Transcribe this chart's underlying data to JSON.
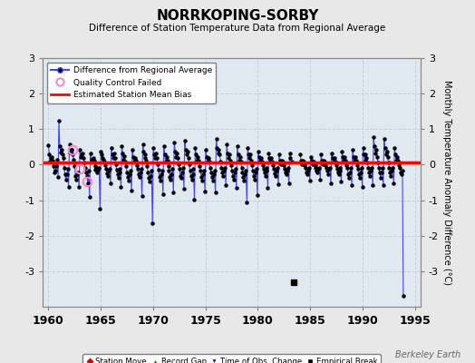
{
  "title": "NORRKOPING-SORBY",
  "subtitle": "Difference of Station Temperature Data from Regional Average",
  "ylabel_right": "Monthly Temperature Anomaly Difference (°C)",
  "xlim": [
    1959.5,
    1995.5
  ],
  "ylim": [
    -4.0,
    3.0
  ],
  "yticks_left": [
    -3,
    -2,
    -1,
    0,
    1,
    2,
    3
  ],
  "yticks_right": [
    -3,
    -2,
    -1,
    0,
    1,
    2,
    3
  ],
  "xticks": [
    1960,
    1965,
    1970,
    1975,
    1980,
    1985,
    1990,
    1995
  ],
  "bg_color": "#e8e8e8",
  "plot_bg_color": "#e0e8f0",
  "grid_color": "#c8d0d8",
  "line_color": "#4444ff",
  "bias_color": "#ff0000",
  "bias_value": 0.05,
  "empirical_break_year": 1983.4,
  "empirical_break_value": -3.3,
  "watermark": "Berkeley Earth",
  "qc_fail_points": [
    [
      1962.3,
      0.42
    ],
    [
      1963.0,
      -0.12
    ],
    [
      1963.75,
      -0.48
    ]
  ],
  "monthly_data": [
    [
      1960.04,
      0.55
    ],
    [
      1960.12,
      0.28
    ],
    [
      1960.21,
      0.08
    ],
    [
      1960.29,
      0.18
    ],
    [
      1960.37,
      0.22
    ],
    [
      1960.46,
      0.12
    ],
    [
      1960.54,
      -0.05
    ],
    [
      1960.62,
      -0.22
    ],
    [
      1960.71,
      -0.18
    ],
    [
      1960.79,
      -0.05
    ],
    [
      1960.87,
      0.15
    ],
    [
      1960.96,
      -0.35
    ],
    [
      1961.04,
      1.25
    ],
    [
      1961.12,
      0.52
    ],
    [
      1961.21,
      0.35
    ],
    [
      1961.29,
      0.42
    ],
    [
      1961.37,
      0.28
    ],
    [
      1961.46,
      0.18
    ],
    [
      1961.54,
      -0.08
    ],
    [
      1961.62,
      -0.28
    ],
    [
      1961.71,
      -0.42
    ],
    [
      1961.79,
      -0.28
    ],
    [
      1961.87,
      -0.12
    ],
    [
      1961.96,
      -0.62
    ],
    [
      1962.04,
      0.58
    ],
    [
      1962.12,
      0.35
    ],
    [
      1962.21,
      0.42
    ],
    [
      1962.29,
      0.42
    ],
    [
      1962.37,
      0.28
    ],
    [
      1962.46,
      0.15
    ],
    [
      1962.54,
      -0.05
    ],
    [
      1962.62,
      -0.32
    ],
    [
      1962.71,
      -0.42
    ],
    [
      1962.79,
      -0.28
    ],
    [
      1962.87,
      -0.22
    ],
    [
      1962.96,
      -0.62
    ],
    [
      1963.04,
      0.42
    ],
    [
      1963.12,
      0.22
    ],
    [
      1963.21,
      0.28
    ],
    [
      1963.29,
      0.32
    ],
    [
      1963.37,
      0.18
    ],
    [
      1963.46,
      0.05
    ],
    [
      1963.54,
      -0.08
    ],
    [
      1963.62,
      -0.22
    ],
    [
      1963.71,
      -0.32
    ],
    [
      1963.79,
      -0.52
    ],
    [
      1963.87,
      -0.18
    ],
    [
      1963.96,
      -0.92
    ],
    [
      1964.04,
      0.32
    ],
    [
      1964.12,
      0.15
    ],
    [
      1964.21,
      0.08
    ],
    [
      1964.29,
      0.18
    ],
    [
      1964.37,
      0.12
    ],
    [
      1964.46,
      -0.05
    ],
    [
      1964.54,
      -0.15
    ],
    [
      1964.62,
      -0.08
    ],
    [
      1964.71,
      -0.22
    ],
    [
      1964.79,
      -0.15
    ],
    [
      1964.87,
      -0.08
    ],
    [
      1964.96,
      -1.25
    ],
    [
      1965.04,
      0.38
    ],
    [
      1965.12,
      0.28
    ],
    [
      1965.21,
      0.18
    ],
    [
      1965.29,
      0.15
    ],
    [
      1965.37,
      0.08
    ],
    [
      1965.46,
      -0.02
    ],
    [
      1965.54,
      -0.12
    ],
    [
      1965.62,
      -0.25
    ],
    [
      1965.71,
      -0.32
    ],
    [
      1965.79,
      -0.18
    ],
    [
      1965.87,
      -0.12
    ],
    [
      1965.96,
      -0.52
    ],
    [
      1966.04,
      0.48
    ],
    [
      1966.12,
      0.28
    ],
    [
      1966.21,
      0.18
    ],
    [
      1966.29,
      0.32
    ],
    [
      1966.37,
      0.18
    ],
    [
      1966.46,
      0.02
    ],
    [
      1966.54,
      -0.15
    ],
    [
      1966.62,
      -0.28
    ],
    [
      1966.71,
      -0.38
    ],
    [
      1966.79,
      -0.22
    ],
    [
      1966.87,
      -0.12
    ],
    [
      1966.96,
      -0.62
    ],
    [
      1967.04,
      0.52
    ],
    [
      1967.12,
      0.32
    ],
    [
      1967.21,
      0.15
    ],
    [
      1967.29,
      0.25
    ],
    [
      1967.37,
      0.08
    ],
    [
      1967.46,
      -0.05
    ],
    [
      1967.54,
      -0.22
    ],
    [
      1967.62,
      -0.35
    ],
    [
      1967.71,
      -0.45
    ],
    [
      1967.79,
      -0.28
    ],
    [
      1967.87,
      -0.18
    ],
    [
      1967.96,
      -0.72
    ],
    [
      1968.04,
      0.42
    ],
    [
      1968.12,
      0.22
    ],
    [
      1968.21,
      0.08
    ],
    [
      1968.29,
      0.18
    ],
    [
      1968.37,
      0.12
    ],
    [
      1968.46,
      -0.02
    ],
    [
      1968.54,
      -0.12
    ],
    [
      1968.62,
      -0.28
    ],
    [
      1968.71,
      -0.35
    ],
    [
      1968.79,
      -0.22
    ],
    [
      1968.87,
      -0.12
    ],
    [
      1968.96,
      -0.88
    ],
    [
      1969.04,
      0.58
    ],
    [
      1969.12,
      0.38
    ],
    [
      1969.21,
      0.18
    ],
    [
      1969.29,
      0.28
    ],
    [
      1969.37,
      0.12
    ],
    [
      1969.46,
      -0.05
    ],
    [
      1969.54,
      -0.22
    ],
    [
      1969.62,
      -0.38
    ],
    [
      1969.71,
      -0.48
    ],
    [
      1969.79,
      -0.32
    ],
    [
      1969.87,
      -0.18
    ],
    [
      1969.96,
      -1.65
    ],
    [
      1970.04,
      0.48
    ],
    [
      1970.12,
      0.28
    ],
    [
      1970.21,
      0.18
    ],
    [
      1970.29,
      0.32
    ],
    [
      1970.37,
      0.18
    ],
    [
      1970.46,
      0.02
    ],
    [
      1970.54,
      -0.15
    ],
    [
      1970.62,
      -0.35
    ],
    [
      1970.71,
      -0.45
    ],
    [
      1970.79,
      -0.28
    ],
    [
      1970.87,
      -0.18
    ],
    [
      1970.96,
      -0.82
    ],
    [
      1971.04,
      0.52
    ],
    [
      1971.12,
      0.28
    ],
    [
      1971.21,
      0.08
    ],
    [
      1971.29,
      0.22
    ],
    [
      1971.37,
      0.12
    ],
    [
      1971.46,
      -0.05
    ],
    [
      1971.54,
      -0.18
    ],
    [
      1971.62,
      -0.35
    ],
    [
      1971.71,
      -0.42
    ],
    [
      1971.79,
      -0.28
    ],
    [
      1971.87,
      -0.12
    ],
    [
      1971.96,
      -0.78
    ],
    [
      1972.04,
      0.62
    ],
    [
      1972.12,
      0.38
    ],
    [
      1972.21,
      0.22
    ],
    [
      1972.29,
      0.32
    ],
    [
      1972.37,
      0.18
    ],
    [
      1972.46,
      0.02
    ],
    [
      1972.54,
      -0.12
    ],
    [
      1972.62,
      -0.32
    ],
    [
      1972.71,
      -0.38
    ],
    [
      1972.79,
      -0.22
    ],
    [
      1972.87,
      -0.08
    ],
    [
      1972.96,
      -0.68
    ],
    [
      1973.04,
      0.68
    ],
    [
      1973.12,
      0.42
    ],
    [
      1973.21,
      0.28
    ],
    [
      1973.29,
      0.38
    ],
    [
      1973.37,
      0.18
    ],
    [
      1973.46,
      0.02
    ],
    [
      1973.54,
      -0.18
    ],
    [
      1973.62,
      -0.32
    ],
    [
      1973.71,
      -0.42
    ],
    [
      1973.79,
      -0.28
    ],
    [
      1973.87,
      -0.12
    ],
    [
      1973.96,
      -0.98
    ],
    [
      1974.04,
      0.48
    ],
    [
      1974.12,
      0.28
    ],
    [
      1974.21,
      0.12
    ],
    [
      1974.29,
      0.22
    ],
    [
      1974.37,
      0.12
    ],
    [
      1974.46,
      -0.05
    ],
    [
      1974.54,
      -0.18
    ],
    [
      1974.62,
      -0.35
    ],
    [
      1974.71,
      -0.45
    ],
    [
      1974.79,
      -0.28
    ],
    [
      1974.87,
      -0.18
    ],
    [
      1974.96,
      -0.75
    ],
    [
      1975.04,
      0.42
    ],
    [
      1975.12,
      0.22
    ],
    [
      1975.21,
      0.08
    ],
    [
      1975.29,
      0.18
    ],
    [
      1975.37,
      0.08
    ],
    [
      1975.46,
      -0.08
    ],
    [
      1975.54,
      -0.22
    ],
    [
      1975.62,
      -0.35
    ],
    [
      1975.71,
      -0.45
    ],
    [
      1975.79,
      -0.28
    ],
    [
      1975.87,
      -0.18
    ],
    [
      1975.96,
      -0.78
    ],
    [
      1976.04,
      0.72
    ],
    [
      1976.12,
      0.48
    ],
    [
      1976.21,
      0.32
    ],
    [
      1976.29,
      0.42
    ],
    [
      1976.37,
      0.28
    ],
    [
      1976.46,
      0.08
    ],
    [
      1976.54,
      -0.08
    ],
    [
      1976.62,
      -0.22
    ],
    [
      1976.71,
      -0.32
    ],
    [
      1976.79,
      -0.18
    ],
    [
      1976.87,
      -0.08
    ],
    [
      1976.96,
      -0.58
    ],
    [
      1977.04,
      0.58
    ],
    [
      1977.12,
      0.32
    ],
    [
      1977.21,
      0.18
    ],
    [
      1977.29,
      0.28
    ],
    [
      1977.37,
      0.12
    ],
    [
      1977.46,
      -0.02
    ],
    [
      1977.54,
      -0.18
    ],
    [
      1977.62,
      -0.32
    ],
    [
      1977.71,
      -0.42
    ],
    [
      1977.79,
      -0.22
    ],
    [
      1977.87,
      -0.12
    ],
    [
      1977.96,
      -0.65
    ],
    [
      1978.04,
      0.52
    ],
    [
      1978.12,
      0.28
    ],
    [
      1978.21,
      0.12
    ],
    [
      1978.29,
      0.22
    ],
    [
      1978.37,
      0.08
    ],
    [
      1978.46,
      -0.08
    ],
    [
      1978.54,
      -0.22
    ],
    [
      1978.62,
      -0.35
    ],
    [
      1978.71,
      -0.45
    ],
    [
      1978.79,
      -0.28
    ],
    [
      1978.87,
      -0.18
    ],
    [
      1978.96,
      -1.05
    ],
    [
      1979.04,
      0.48
    ],
    [
      1979.12,
      0.28
    ],
    [
      1979.21,
      0.18
    ],
    [
      1979.29,
      0.28
    ],
    [
      1979.37,
      0.12
    ],
    [
      1979.46,
      -0.02
    ],
    [
      1979.54,
      -0.18
    ],
    [
      1979.62,
      -0.32
    ],
    [
      1979.71,
      -0.42
    ],
    [
      1979.79,
      -0.22
    ],
    [
      1979.87,
      -0.12
    ],
    [
      1979.96,
      -0.85
    ],
    [
      1980.04,
      0.38
    ],
    [
      1980.12,
      0.22
    ],
    [
      1980.21,
      0.12
    ],
    [
      1980.29,
      0.18
    ],
    [
      1980.37,
      0.08
    ],
    [
      1980.46,
      -0.02
    ],
    [
      1980.54,
      -0.12
    ],
    [
      1980.62,
      -0.22
    ],
    [
      1980.71,
      -0.32
    ],
    [
      1980.79,
      -0.18
    ],
    [
      1980.87,
      -0.08
    ],
    [
      1980.96,
      -0.65
    ],
    [
      1981.04,
      0.32
    ],
    [
      1981.12,
      0.18
    ],
    [
      1981.21,
      0.08
    ],
    [
      1981.29,
      0.18
    ],
    [
      1981.37,
      0.08
    ],
    [
      1981.46,
      -0.02
    ],
    [
      1981.54,
      -0.12
    ],
    [
      1981.62,
      -0.25
    ],
    [
      1981.71,
      -0.32
    ],
    [
      1981.79,
      -0.18
    ],
    [
      1981.87,
      -0.08
    ],
    [
      1981.96,
      -0.55
    ],
    [
      1982.04,
      0.28
    ],
    [
      1982.12,
      0.12
    ],
    [
      1982.21,
      0.02
    ],
    [
      1982.29,
      0.12
    ],
    [
      1982.37,
      0.08
    ],
    [
      1982.46,
      -0.02
    ],
    [
      1982.54,
      -0.12
    ],
    [
      1982.62,
      -0.22
    ],
    [
      1982.71,
      -0.28
    ],
    [
      1982.79,
      -0.18
    ],
    [
      1982.87,
      -0.08
    ],
    [
      1982.96,
      -0.52
    ],
    [
      1983.04,
      0.32
    ],
    [
      1983.12,
      0.18
    ],
    [
      1983.21,
      0.08
    ],
    [
      1984.04,
      0.28
    ],
    [
      1984.12,
      0.12
    ],
    [
      1984.21,
      0.02
    ],
    [
      1984.29,
      0.12
    ],
    [
      1984.37,
      0.08
    ],
    [
      1984.46,
      -0.02
    ],
    [
      1984.54,
      -0.08
    ],
    [
      1984.62,
      -0.22
    ],
    [
      1984.71,
      -0.28
    ],
    [
      1984.79,
      -0.18
    ],
    [
      1984.87,
      -0.08
    ],
    [
      1984.96,
      -0.45
    ],
    [
      1985.04,
      0.22
    ],
    [
      1985.12,
      0.12
    ],
    [
      1985.21,
      0.02
    ],
    [
      1985.29,
      0.08
    ],
    [
      1985.37,
      0.02
    ],
    [
      1985.46,
      -0.02
    ],
    [
      1985.54,
      -0.08
    ],
    [
      1985.62,
      -0.18
    ],
    [
      1985.71,
      -0.22
    ],
    [
      1985.79,
      -0.12
    ],
    [
      1985.87,
      -0.08
    ],
    [
      1985.96,
      -0.42
    ],
    [
      1986.04,
      0.28
    ],
    [
      1986.12,
      0.12
    ],
    [
      1986.21,
      0.02
    ],
    [
      1986.29,
      0.12
    ],
    [
      1986.37,
      0.08
    ],
    [
      1986.46,
      -0.02
    ],
    [
      1986.54,
      -0.08
    ],
    [
      1986.62,
      -0.18
    ],
    [
      1986.71,
      -0.28
    ],
    [
      1986.79,
      -0.12
    ],
    [
      1986.87,
      -0.08
    ],
    [
      1986.96,
      -0.52
    ],
    [
      1987.04,
      0.32
    ],
    [
      1987.12,
      0.18
    ],
    [
      1987.21,
      0.08
    ],
    [
      1987.29,
      0.18
    ],
    [
      1987.37,
      0.08
    ],
    [
      1987.46,
      -0.02
    ],
    [
      1987.54,
      -0.12
    ],
    [
      1987.62,
      -0.22
    ],
    [
      1987.71,
      -0.28
    ],
    [
      1987.79,
      -0.18
    ],
    [
      1987.87,
      -0.08
    ],
    [
      1987.96,
      -0.48
    ],
    [
      1988.04,
      0.38
    ],
    [
      1988.12,
      0.22
    ],
    [
      1988.21,
      0.12
    ],
    [
      1988.29,
      0.22
    ],
    [
      1988.37,
      0.12
    ],
    [
      1988.46,
      -0.02
    ],
    [
      1988.54,
      -0.08
    ],
    [
      1988.62,
      -0.28
    ],
    [
      1988.71,
      -0.38
    ],
    [
      1988.79,
      -0.22
    ],
    [
      1988.87,
      -0.08
    ],
    [
      1988.96,
      -0.58
    ],
    [
      1989.04,
      0.42
    ],
    [
      1989.12,
      0.22
    ],
    [
      1989.21,
      0.12
    ],
    [
      1989.29,
      0.22
    ],
    [
      1989.37,
      0.12
    ],
    [
      1989.46,
      -0.02
    ],
    [
      1989.54,
      -0.12
    ],
    [
      1989.62,
      -0.28
    ],
    [
      1989.71,
      -0.38
    ],
    [
      1989.79,
      -0.22
    ],
    [
      1989.87,
      -0.08
    ],
    [
      1989.96,
      -0.62
    ],
    [
      1990.04,
      0.48
    ],
    [
      1990.12,
      0.28
    ],
    [
      1990.21,
      0.12
    ],
    [
      1990.29,
      0.28
    ],
    [
      1990.37,
      0.18
    ],
    [
      1990.46,
      0.05
    ],
    [
      1990.54,
      -0.08
    ],
    [
      1990.62,
      -0.22
    ],
    [
      1990.71,
      -0.32
    ],
    [
      1990.79,
      -0.18
    ],
    [
      1990.87,
      -0.08
    ],
    [
      1990.96,
      -0.58
    ],
    [
      1991.04,
      0.78
    ],
    [
      1991.12,
      0.52
    ],
    [
      1991.21,
      0.32
    ],
    [
      1991.29,
      0.42
    ],
    [
      1991.37,
      0.22
    ],
    [
      1991.46,
      0.05
    ],
    [
      1991.54,
      -0.08
    ],
    [
      1991.62,
      -0.22
    ],
    [
      1991.71,
      -0.38
    ],
    [
      1991.79,
      -0.22
    ],
    [
      1991.87,
      -0.08
    ],
    [
      1991.96,
      -0.58
    ],
    [
      1992.04,
      0.72
    ],
    [
      1992.12,
      0.48
    ],
    [
      1992.21,
      0.28
    ],
    [
      1992.29,
      0.38
    ],
    [
      1992.37,
      0.22
    ],
    [
      1992.46,
      0.05
    ],
    [
      1992.54,
      -0.08
    ],
    [
      1992.62,
      -0.22
    ],
    [
      1992.71,
      -0.32
    ],
    [
      1992.79,
      -0.18
    ],
    [
      1992.87,
      -0.08
    ],
    [
      1992.96,
      -0.52
    ],
    [
      1993.04,
      0.48
    ],
    [
      1993.12,
      0.28
    ],
    [
      1993.21,
      0.12
    ],
    [
      1993.29,
      0.22
    ],
    [
      1993.37,
      0.12
    ],
    [
      1993.46,
      -0.02
    ],
    [
      1993.54,
      -0.08
    ],
    [
      1993.62,
      -0.22
    ],
    [
      1993.71,
      -0.28
    ],
    [
      1993.79,
      -0.18
    ],
    [
      1993.87,
      -3.7
    ]
  ]
}
